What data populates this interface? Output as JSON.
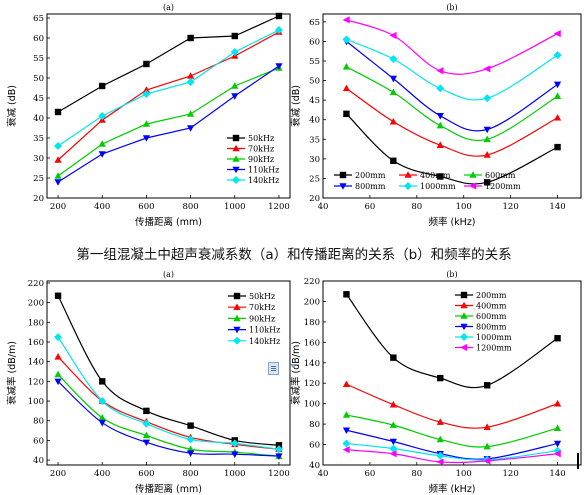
{
  "caption": "第一组混凝土中超声衰减系数（a）和传播距离的关系（b）和频率的关系",
  "series_colors": [
    "#000000",
    "#ff0000",
    "#00cc00",
    "#0000ff",
    "#00e5ee",
    "#ff00ff"
  ],
  "chart_data": [
    {
      "type": "line",
      "title": "(a)",
      "xlabel": "传播距离 (mm)",
      "ylabel": "衰减 (dB)",
      "xlim": [
        150,
        1250
      ],
      "ylim": [
        20,
        66
      ],
      "xticks": [
        200,
        400,
        600,
        800,
        1000,
        1200
      ],
      "yticks": [
        20,
        25,
        30,
        35,
        40,
        45,
        50,
        55,
        60,
        65
      ],
      "x": [
        200,
        400,
        600,
        800,
        1000,
        1200
      ],
      "series": [
        {
          "name": "50kHz",
          "values": [
            41.5,
            48,
            53.5,
            60,
            60.5,
            65.5
          ]
        },
        {
          "name": "70kHz",
          "values": [
            29.5,
            39.5,
            47,
            50.5,
            55.5,
            61.5
          ]
        },
        {
          "name": "90kHz",
          "values": [
            25.5,
            33.5,
            38.5,
            41,
            48,
            52.5
          ]
        },
        {
          "name": "110kHz",
          "values": [
            24,
            31,
            35,
            37.5,
            45.5,
            53
          ]
        },
        {
          "name": "140kHz",
          "values": [
            33,
            40.5,
            46,
            49,
            56.5,
            62
          ]
        }
      ],
      "legend": "bottom-right"
    },
    {
      "type": "line",
      "title": "(b)",
      "xlabel": "频率 (kHz)",
      "ylabel": "衰减 (dB)",
      "xlim": [
        40,
        150
      ],
      "ylim": [
        20,
        67
      ],
      "xticks": [
        40,
        60,
        80,
        100,
        120,
        140
      ],
      "yticks": [
        20,
        25,
        30,
        35,
        40,
        45,
        50,
        55,
        60,
        65
      ],
      "x": [
        50,
        70,
        90,
        110,
        140
      ],
      "series": [
        {
          "name": "200mm",
          "values": [
            41.5,
            29.5,
            25.5,
            24,
            33
          ]
        },
        {
          "name": "400mm",
          "values": [
            48,
            39.5,
            33.5,
            31,
            40.5
          ]
        },
        {
          "name": "600mm",
          "values": [
            53.5,
            47,
            38.5,
            35,
            46
          ]
        },
        {
          "name": "800mm",
          "values": [
            60,
            50.5,
            41,
            37.5,
            49
          ]
        },
        {
          "name": "1000mm",
          "values": [
            60.5,
            55.5,
            48,
            45.5,
            56.5
          ]
        },
        {
          "name": "1200mm",
          "values": [
            65.5,
            61.5,
            52.5,
            53,
            62
          ]
        }
      ],
      "legend": "bottom"
    },
    {
      "type": "line",
      "title": "(a)",
      "xlabel": "传播距离 (mm)",
      "ylabel": "衰减率 (dB/m)",
      "xlim": [
        150,
        1250
      ],
      "ylim": [
        35,
        222
      ],
      "xticks": [
        200,
        400,
        600,
        800,
        1000,
        1200
      ],
      "yticks": [
        40,
        60,
        80,
        100,
        120,
        140,
        160,
        180,
        200,
        220
      ],
      "x": [
        200,
        400,
        600,
        800,
        1000,
        1200
      ],
      "series": [
        {
          "name": "50kHz",
          "values": [
            207,
            120,
            90,
            75,
            60,
            55
          ]
        },
        {
          "name": "70kHz",
          "values": [
            145,
            100,
            79,
            63,
            56,
            51
          ]
        },
        {
          "name": "90kHz",
          "values": [
            127,
            83,
            65,
            51,
            48,
            44
          ]
        },
        {
          "name": "110kHz",
          "values": [
            120,
            78,
            58,
            47,
            46,
            44
          ]
        },
        {
          "name": "140kHz",
          "values": [
            165,
            100,
            77,
            61,
            57,
            51
          ]
        }
      ],
      "legend": "top-right"
    },
    {
      "type": "line",
      "title": "(b)",
      "xlabel": "频率 (kHz)",
      "ylabel": "衰减率 (dB/m)",
      "xlim": [
        40,
        150
      ],
      "ylim": [
        40,
        220
      ],
      "xticks": [
        40,
        60,
        80,
        100,
        120,
        140
      ],
      "yticks": [
        40,
        60,
        80,
        100,
        120,
        140,
        160,
        180,
        200,
        220
      ],
      "x": [
        50,
        70,
        90,
        110,
        140
      ],
      "series": [
        {
          "name": "200mm",
          "values": [
            207,
            145,
            125,
            118,
            164
          ]
        },
        {
          "name": "400mm",
          "values": [
            119,
            99,
            82,
            77,
            100
          ]
        },
        {
          "name": "600mm",
          "values": [
            89,
            79,
            65,
            58,
            76
          ]
        },
        {
          "name": "800mm",
          "values": [
            74,
            63,
            51,
            46,
            61
          ]
        },
        {
          "name": "1000mm",
          "values": [
            61,
            56,
            49,
            45,
            54
          ]
        },
        {
          "name": "1200mm",
          "values": [
            55,
            51,
            43,
            44,
            51
          ]
        }
      ],
      "legend": "top-right"
    }
  ]
}
